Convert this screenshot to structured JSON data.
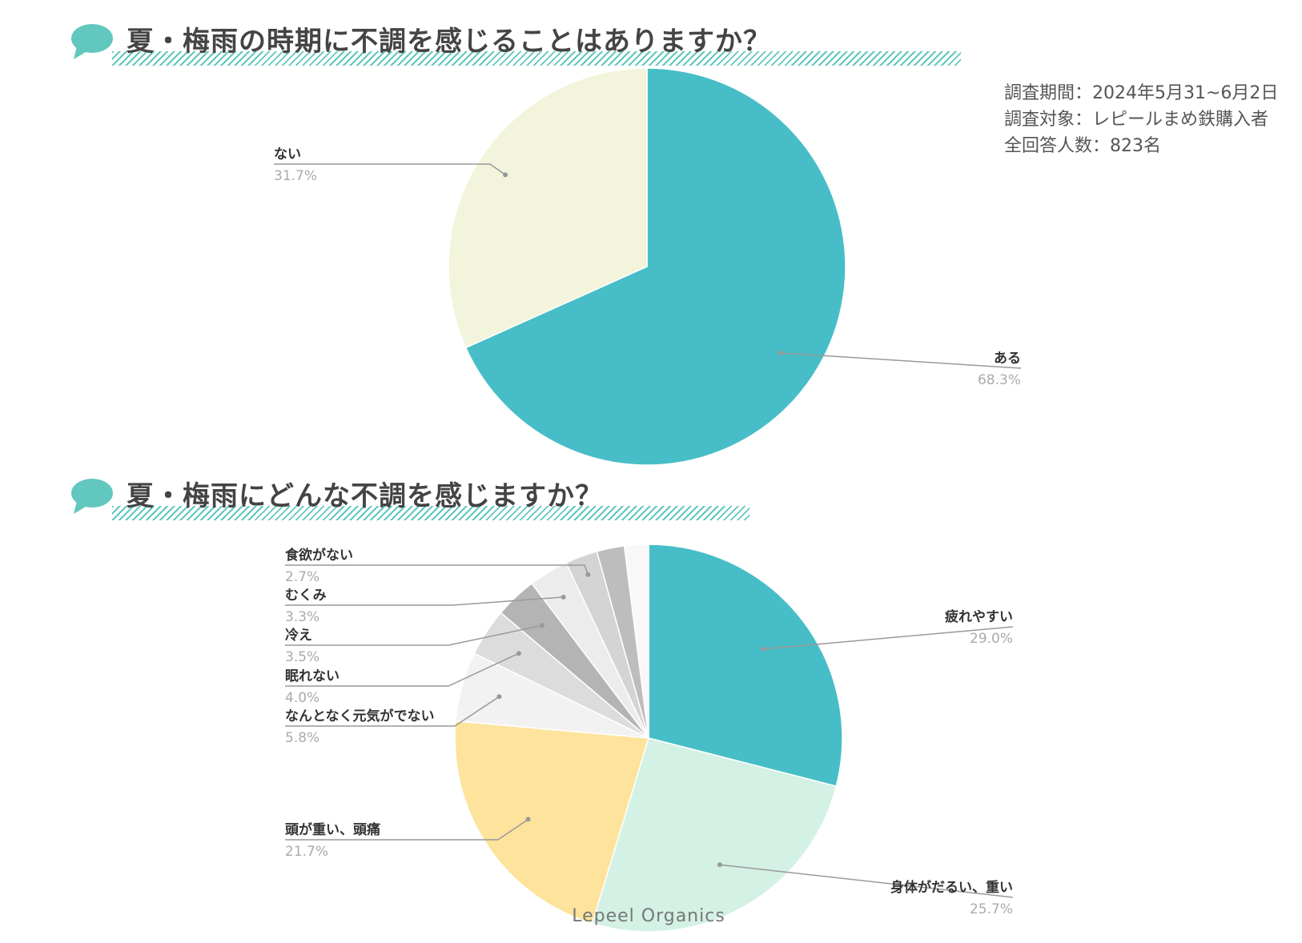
{
  "survey_info": {
    "period": "調査期間：2024年5月31~6月2日",
    "target": "調査対象：レピールまめ鉄購入者",
    "respondents": "全回答人数：823名"
  },
  "footer": "Lepeel Organics",
  "colors": {
    "accent": "#62c7be",
    "teal": "#47bec7",
    "cream": "#f3f4dc",
    "mint": "#d3f1e4",
    "yellow": "#fde39b",
    "grey1": "#f2f2f2",
    "grey2": "#dcdcdc",
    "grey3": "#b4b4b4",
    "grey4": "#ececec",
    "grey5": "#d4d4d4",
    "grey6": "#bdbdbd",
    "grey7": "#f8f8f8"
  },
  "chart_data": [
    {
      "type": "pie",
      "title": "夏・梅雨の時期に不調を感じることはありますか？",
      "slices": [
        {
          "label": "ある",
          "value": 68.3,
          "display": "68.3%",
          "color": "#47bec7"
        },
        {
          "label": "ない",
          "value": 31.7,
          "display": "31.7%",
          "color": "#f3f4dc"
        }
      ]
    },
    {
      "type": "pie",
      "title": "夏・梅雨にどんな不調を感じますか？",
      "slices": [
        {
          "label": "疲れやすい",
          "value": 29.0,
          "display": "29.0%",
          "color": "#47bec7"
        },
        {
          "label": "身体がだるい、重い",
          "value": 25.7,
          "display": "25.7%",
          "color": "#d3f1e4"
        },
        {
          "label": "頭が重い、頭痛",
          "value": 21.7,
          "display": "21.7%",
          "color": "#fde39b"
        },
        {
          "label": "なんとなく元気がでない",
          "value": 5.8,
          "display": "5.8%",
          "color": "#f2f2f2"
        },
        {
          "label": "眠れない",
          "value": 4.0,
          "display": "4.0%",
          "color": "#dcdcdc"
        },
        {
          "label": "冷え",
          "value": 3.5,
          "display": "3.5%",
          "color": "#b4b4b4"
        },
        {
          "label": "むくみ",
          "value": 3.3,
          "display": "3.3%",
          "color": "#ececec"
        },
        {
          "label": "食欲がない",
          "value": 2.7,
          "display": "2.7%",
          "color": "#d4d4d4"
        },
        {
          "label": "",
          "value": 2.3,
          "display": "",
          "color": "#bdbdbd"
        },
        {
          "label": "",
          "value": 2.0,
          "display": "",
          "color": "#f8f8f8"
        }
      ]
    }
  ]
}
